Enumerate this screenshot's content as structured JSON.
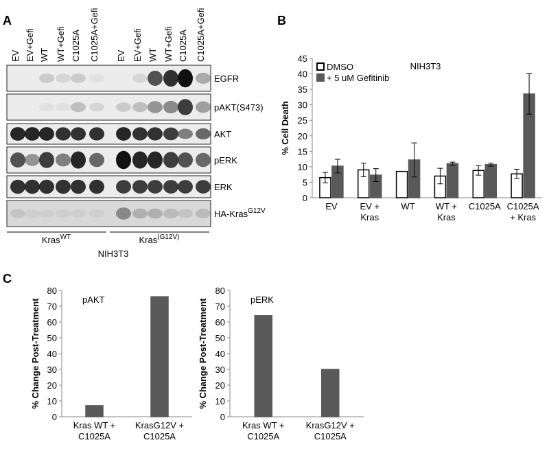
{
  "panels": {
    "a": {
      "label": "A",
      "lanes": [
        "EV",
        "EV+Gefi",
        "WT",
        "WT+Gefi",
        "C1025A",
        "C1025A+Gefi",
        "EV",
        "EV+Gefi",
        "WT",
        "WT+Gefi",
        "C1025A",
        "C1025A+Gefi"
      ],
      "rows": [
        {
          "text": "EGFR"
        },
        {
          "text": "pAKT(S473)"
        },
        {
          "text": "AKT"
        },
        {
          "text": "pERK"
        },
        {
          "text": "ERK"
        },
        {
          "text": "HA-Kras",
          "sup": "G12V"
        }
      ],
      "groups": [
        {
          "text": "Kras",
          "sup": "WT"
        },
        {
          "text": "Kras",
          "sup": "(G12V)"
        }
      ],
      "caption": "NIH3T3"
    },
    "b": {
      "label": "B"
    },
    "c": {
      "label": "C"
    }
  },
  "chart_data": [
    {
      "type": "bar",
      "title": "NIH3T3",
      "y_label": "% Cell Death",
      "categories": [
        [
          "EV"
        ],
        [
          "EV +",
          "Kras"
        ],
        [
          "WT"
        ],
        [
          "WT +",
          "Kras"
        ],
        [
          "C1025A"
        ],
        [
          "C1025A",
          "+ Kras"
        ]
      ],
      "series": [
        {
          "name": "DMSO",
          "color": "#ffffff",
          "edgecolor": "#000000",
          "values": [
            6.5,
            9,
            8.5,
            7,
            8.8,
            7.7
          ],
          "errors": [
            1.7,
            2.2,
            0,
            2.5,
            1.5,
            1.5
          ]
        },
        {
          "name": "+ 5 uM Gefitinib",
          "color": "#595959",
          "edgecolor": "#595959",
          "values": [
            10.2,
            7.3,
            12.2,
            11,
            10.7,
            33.5
          ],
          "errors": [
            2.2,
            2.1,
            5.5,
            0.5,
            0.5,
            6.5
          ]
        }
      ],
      "ylim": [
        0,
        45
      ],
      "yticks": [
        0,
        5,
        10,
        15,
        20,
        25,
        30,
        35,
        40,
        45
      ],
      "legend": "upper left"
    },
    {
      "type": "bar",
      "title": "pAKT",
      "y_label": "% Change Post-Treatment",
      "categories": [
        [
          "Kras WT +",
          "C1025A"
        ],
        [
          "KrasG12V +",
          "C1025A"
        ]
      ],
      "series": [
        {
          "color": "#595959",
          "edgecolor": "#595959",
          "values": [
            7,
            76
          ]
        }
      ],
      "ylim": [
        0,
        80
      ],
      "yticks": [
        0,
        10,
        20,
        30,
        40,
        50,
        60,
        70,
        80
      ]
    },
    {
      "type": "bar",
      "title": "pERK",
      "y_label": "% Change Post-Treatment",
      "categories": [
        [
          "Kras WT +",
          "C1025A"
        ],
        [
          "KrasG12V +",
          "C1025A"
        ]
      ],
      "series": [
        {
          "color": "#595959",
          "edgecolor": "#595959",
          "values": [
            64,
            30
          ]
        }
      ],
      "ylim": [
        0,
        80
      ],
      "yticks": [
        0,
        10,
        20,
        30,
        40,
        50,
        60,
        70,
        80
      ]
    }
  ]
}
